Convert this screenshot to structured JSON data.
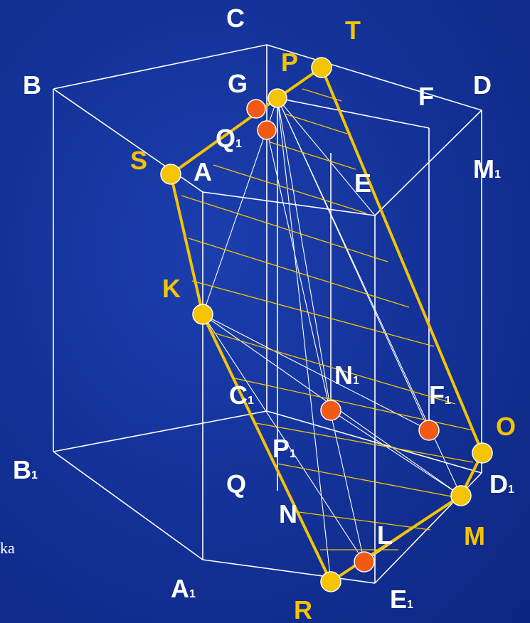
{
  "colors": {
    "background": "#14339a",
    "edges": "#ffffff",
    "section": "#f5c400",
    "yellow_point": "#f5c400",
    "orange_point": "#f05a14"
  },
  "labels": {
    "C": {
      "main": "C",
      "sub": ""
    },
    "T": {
      "main": "T",
      "sub": ""
    },
    "P": {
      "main": "P",
      "sub": ""
    },
    "B": {
      "main": "B",
      "sub": ""
    },
    "G": {
      "main": "G",
      "sub": ""
    },
    "F": {
      "main": "F",
      "sub": ""
    },
    "D": {
      "main": "D",
      "sub": ""
    },
    "Q1": {
      "main": "Q",
      "sub": "1"
    },
    "M1": {
      "main": "M",
      "sub": "1"
    },
    "S": {
      "main": "S",
      "sub": ""
    },
    "A": {
      "main": "A",
      "sub": ""
    },
    "E": {
      "main": "E",
      "sub": ""
    },
    "K": {
      "main": "K",
      "sub": ""
    },
    "N1": {
      "main": "N",
      "sub": "1"
    },
    "C1": {
      "main": "C",
      "sub": "1"
    },
    "F1": {
      "main": "F",
      "sub": "1"
    },
    "O": {
      "main": "O",
      "sub": ""
    },
    "B1": {
      "main": "B",
      "sub": "1"
    },
    "P1": {
      "main": "P",
      "sub": "1"
    },
    "Q": {
      "main": "Q",
      "sub": ""
    },
    "D1": {
      "main": "D",
      "sub": "1"
    },
    "N": {
      "main": "N",
      "sub": ""
    },
    "L": {
      "main": "L",
      "sub": ""
    },
    "M": {
      "main": "M",
      "sub": ""
    },
    "A1": {
      "main": "A",
      "sub": "1"
    },
    "E1": {
      "main": "E",
      "sub": "1"
    },
    "R": {
      "main": "R",
      "sub": ""
    }
  },
  "fragment_text": "ka"
}
